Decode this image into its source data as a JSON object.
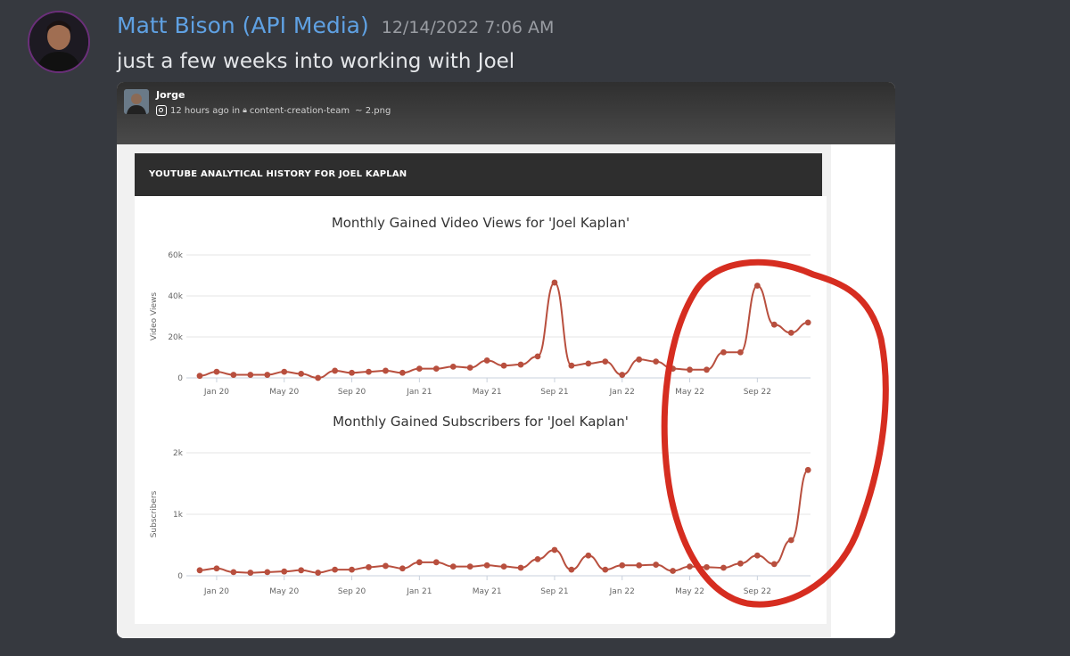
{
  "message": {
    "author": "Matt Bison (API Media)",
    "timestamp": "12/14/2022 7:06 AM",
    "text": "just a few weeks into working with Joel"
  },
  "embed": {
    "username": "Jorge",
    "time_ago": "12 hours ago in",
    "channel": "content-creation-team",
    "filename": "~ 2.png"
  },
  "report": {
    "header_title": "YOUTUBE ANALYTICAL HISTORY FOR JOEL KAPLAN"
  },
  "colors": {
    "line": "#b84f3e",
    "annotation": "#d62d20",
    "author": "#5fa1e3"
  },
  "chart_data": [
    {
      "type": "line",
      "title": "Monthly Gained Video Views for 'Joel Kaplan'",
      "ylabel": "Video Views",
      "yticks": [
        "0",
        "20k",
        "40k",
        "60k"
      ],
      "ylim": [
        0,
        60000
      ],
      "xticks": [
        "Jan 20",
        "May 20",
        "Sep 20",
        "Jan 21",
        "May 21",
        "Sep 21",
        "Jan 22",
        "May 22",
        "Sep 22"
      ],
      "x_start": "Dec 19",
      "values": [
        1000,
        3000,
        1500,
        1500,
        1500,
        3000,
        2000,
        0,
        3500,
        2500,
        3000,
        3500,
        2500,
        4500,
        4500,
        5500,
        5000,
        8500,
        6000,
        6500,
        10500,
        46500,
        6000,
        7000,
        8000,
        1500,
        9000,
        8000,
        4500,
        4000,
        4000,
        12500,
        12500,
        45000,
        26000,
        22000,
        27000
      ]
    },
    {
      "type": "line",
      "title": "Monthly Gained Subscribers for 'Joel Kaplan'",
      "ylabel": "Subscribers",
      "yticks": [
        "0",
        "1k",
        "2k"
      ],
      "ylim": [
        0,
        2000
      ],
      "xticks": [
        "Jan 20",
        "May 20",
        "Sep 20",
        "Jan 21",
        "May 21",
        "Sep 21",
        "Jan 22",
        "May 22",
        "Sep 22"
      ],
      "x_start": "Dec 19",
      "values": [
        90,
        120,
        60,
        50,
        60,
        70,
        90,
        50,
        100,
        100,
        140,
        160,
        120,
        220,
        220,
        150,
        150,
        170,
        150,
        130,
        270,
        420,
        100,
        330,
        100,
        170,
        170,
        180,
        80,
        150,
        140,
        130,
        200,
        330,
        190,
        580,
        1720
      ]
    }
  ]
}
